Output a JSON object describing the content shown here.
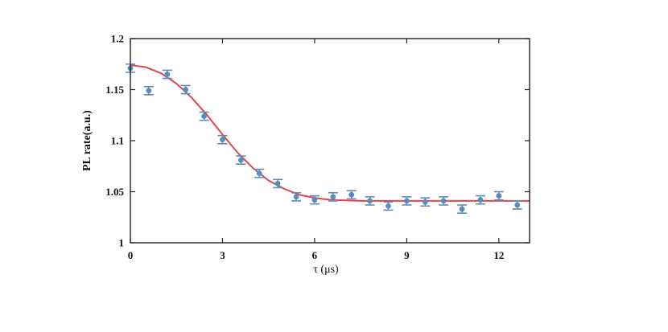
{
  "chart_data": {
    "type": "scatter",
    "xlabel": "τ (μs)",
    "ylabel": "PL rate(a.u.)",
    "xlim": [
      0,
      13
    ],
    "ylim": [
      1,
      1.2
    ],
    "x_ticks": [
      0,
      3,
      6,
      9,
      12
    ],
    "x_tick_labels": [
      "0",
      "3",
      "6",
      "9",
      "12"
    ],
    "y_ticks": [
      1,
      1.05,
      1.1,
      1.15,
      1.2
    ],
    "y_tick_labels": [
      "1",
      "1.05",
      "1.1",
      "1.15",
      "1.2"
    ],
    "grid": false,
    "series": [
      {
        "kind": "points-with-errorbars",
        "color": "#5b8db8",
        "x": [
          0,
          0.6,
          1.2,
          1.8,
          2.4,
          3.0,
          3.6,
          4.2,
          4.8,
          5.4,
          6.0,
          6.6,
          7.2,
          7.8,
          8.4,
          9.0,
          9.6,
          10.2,
          10.8,
          11.4,
          12.0,
          12.6
        ],
        "y": [
          1.171,
          1.149,
          1.165,
          1.15,
          1.124,
          1.101,
          1.081,
          1.068,
          1.058,
          1.045,
          1.042,
          1.045,
          1.047,
          1.041,
          1.036,
          1.041,
          1.04,
          1.041,
          1.033,
          1.042,
          1.046,
          1.037
        ],
        "err": [
          0.004,
          0.004,
          0.004,
          0.004,
          0.004,
          0.004,
          0.004,
          0.004,
          0.004,
          0.004,
          0.004,
          0.004,
          0.004,
          0.004,
          0.004,
          0.004,
          0.004,
          0.004,
          0.004,
          0.004,
          0.004,
          0.004
        ]
      },
      {
        "kind": "fit-line",
        "color": "#e0474c",
        "x": [
          0,
          0.5,
          1.0,
          1.5,
          2.0,
          2.5,
          3.0,
          3.5,
          4.0,
          4.5,
          5.0,
          5.5,
          6.0,
          6.5,
          7.0,
          7.5,
          8.0,
          9.0,
          10.0,
          11.0,
          12.0,
          13.0
        ],
        "y": [
          1.174,
          1.172,
          1.166,
          1.156,
          1.142,
          1.125,
          1.106,
          1.088,
          1.073,
          1.061,
          1.053,
          1.047,
          1.044,
          1.042,
          1.0415,
          1.041,
          1.041,
          1.041,
          1.041,
          1.041,
          1.041,
          1.041
        ]
      }
    ]
  }
}
